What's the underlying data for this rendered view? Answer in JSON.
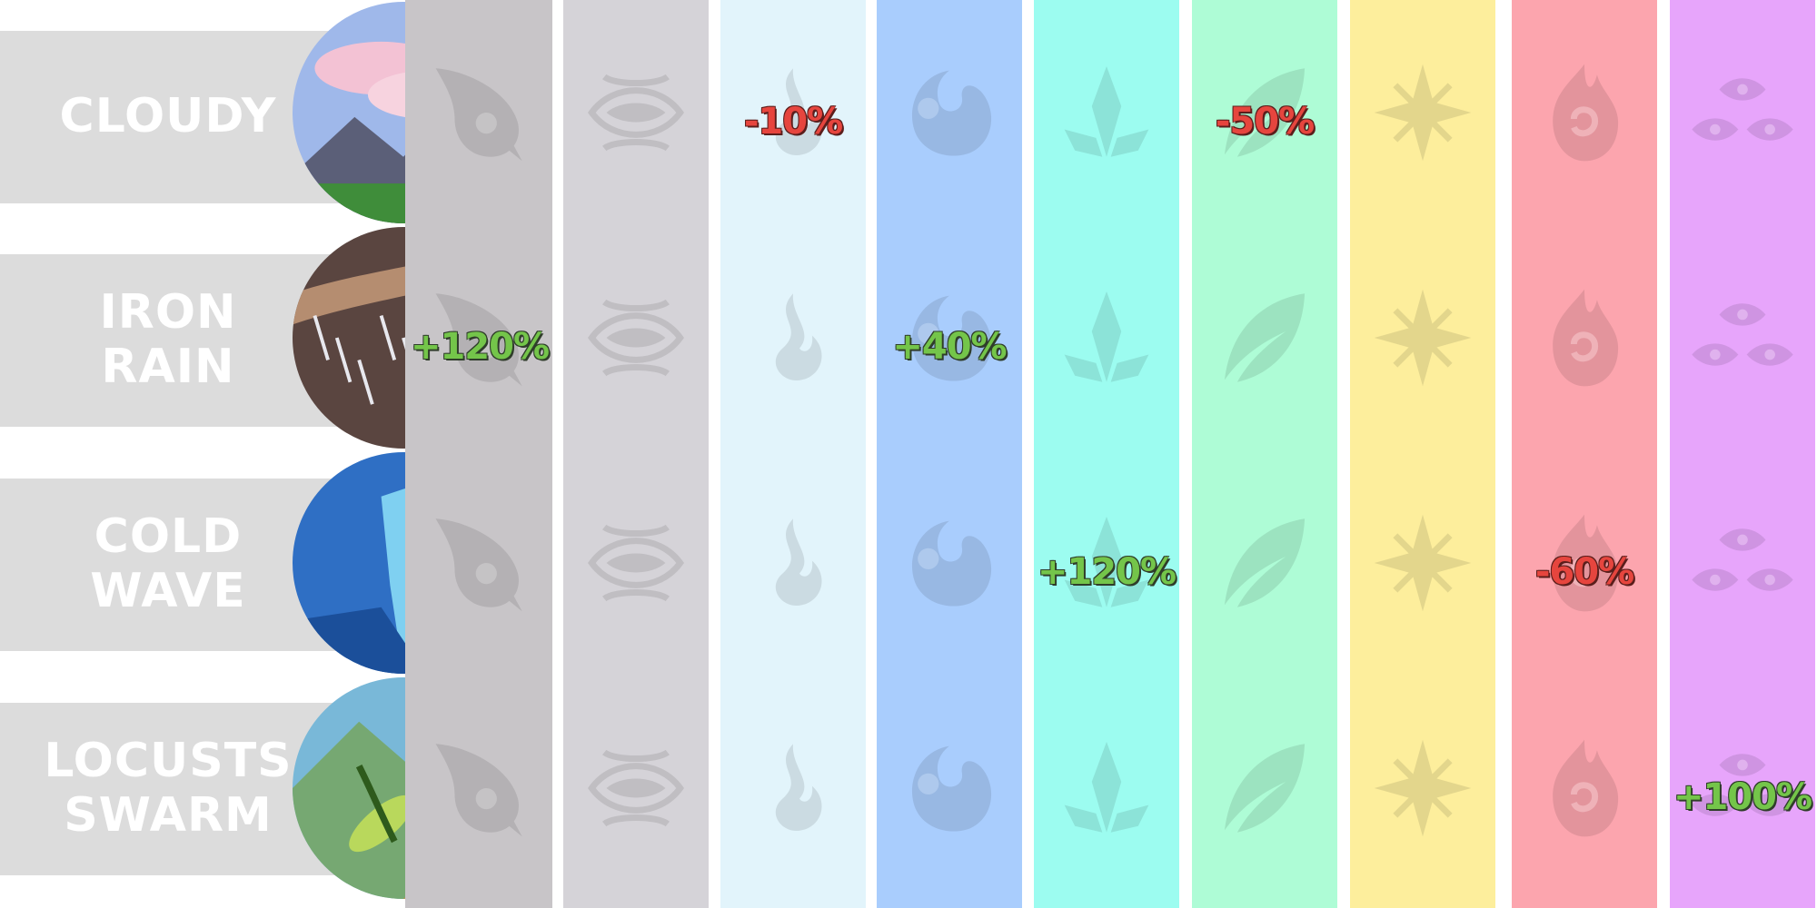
{
  "weathers": [
    {
      "lines": [
        "CLOUDY"
      ]
    },
    {
      "lines": [
        "IRON",
        "RAIN"
      ]
    },
    {
      "lines": [
        "COLD",
        "WAVE"
      ]
    },
    {
      "lines": [
        "LOCUSTS",
        "SWARM"
      ]
    }
  ],
  "columns": [
    {
      "color": "#c8c5c8",
      "icon": "shadow-swirl-icon"
    },
    {
      "color": "#d5d3d8",
      "icon": "eye-icon"
    },
    {
      "color": "#e2f4fb",
      "icon": "wind-flame-icon"
    },
    {
      "color": "#a9cdfd",
      "icon": "water-drop-icon"
    },
    {
      "color": "#9cfcf0",
      "icon": "crystal-icon"
    },
    {
      "color": "#aefcd6",
      "icon": "leaf-icon"
    },
    {
      "color": "#fdee9c",
      "icon": "star-icon"
    },
    {
      "color": "#fca5ae",
      "icon": "flame-icon"
    },
    {
      "color": "#e7a5fb",
      "icon": "triple-eye-icon"
    }
  ],
  "modifiers": [
    {
      "row": 0,
      "col": 2,
      "text": "-10%",
      "sign": "neg"
    },
    {
      "row": 0,
      "col": 5,
      "text": "-50%",
      "sign": "neg"
    },
    {
      "row": 1,
      "col": 0,
      "text": "+120%",
      "sign": "pos"
    },
    {
      "row": 1,
      "col": 3,
      "text": "+40%",
      "sign": "pos"
    },
    {
      "row": 2,
      "col": 4,
      "text": "+120%",
      "sign": "pos"
    },
    {
      "row": 2,
      "col": 7,
      "text": "-60%",
      "sign": "neg"
    },
    {
      "row": 3,
      "col": 8,
      "text": "+100%",
      "sign": "pos"
    }
  ]
}
